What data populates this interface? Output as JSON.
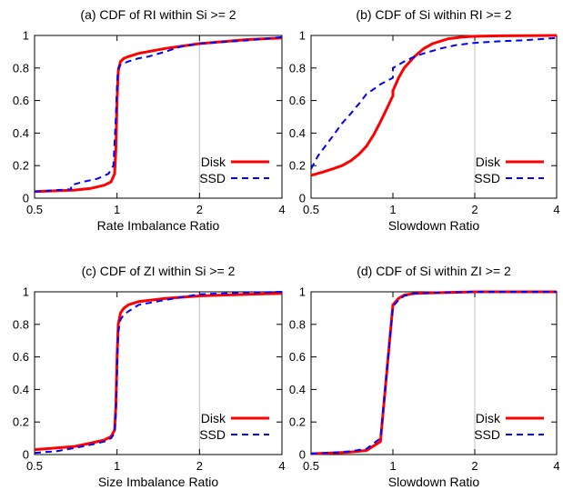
{
  "chart_data": [
    {
      "type": "line",
      "title": "(a) CDF of RI within Si >= 2",
      "xlabel": "Rate Imbalance Ratio",
      "ylabel": "",
      "xscale": "log2",
      "xlim": [
        0.5,
        4
      ],
      "ylim": [
        0,
        1
      ],
      "xticks": [
        "0.5",
        "1",
        "2",
        "4"
      ],
      "yticks": [
        "0",
        "0.2",
        "0.4",
        "0.6",
        "0.8",
        "1"
      ],
      "grid": "vertical line at x=2",
      "legend_position": "bottom-right",
      "series": [
        {
          "name": "Disk",
          "color": "#ff0000",
          "style": "solid",
          "x": [
            0.5,
            0.6,
            0.7,
            0.8,
            0.9,
            0.95,
            0.98,
            0.99,
            1.0,
            1.01,
            1.03,
            1.06,
            1.1,
            1.2,
            1.5,
            2.0,
            3.0,
            4.0
          ],
          "y": [
            0.04,
            0.045,
            0.05,
            0.06,
            0.08,
            0.1,
            0.15,
            0.3,
            0.6,
            0.78,
            0.84,
            0.86,
            0.87,
            0.89,
            0.92,
            0.95,
            0.975,
            0.985
          ]
        },
        {
          "name": "SSD",
          "color": "#0000ff",
          "style": "dashed",
          "x": [
            0.5,
            0.6,
            0.68,
            0.68,
            0.75,
            0.85,
            0.93,
            0.97,
            0.99,
            1.0,
            1.01,
            1.03,
            1.1,
            1.2,
            1.3,
            1.5,
            1.7,
            2.0,
            3.0,
            4.0
          ],
          "y": [
            0.04,
            0.05,
            0.055,
            0.08,
            0.1,
            0.12,
            0.15,
            0.2,
            0.5,
            0.7,
            0.8,
            0.82,
            0.84,
            0.86,
            0.87,
            0.9,
            0.93,
            0.95,
            0.97,
            0.99
          ]
        }
      ]
    },
    {
      "type": "line",
      "title": "(b) CDF of Si within RI >= 2",
      "xlabel": "Slowdown Ratio",
      "ylabel": "",
      "xscale": "log2",
      "xlim": [
        0.5,
        4
      ],
      "ylim": [
        0,
        1
      ],
      "xticks": [
        "0.5",
        "1",
        "2",
        "4"
      ],
      "yticks": [
        "0",
        "0.2",
        "0.4",
        "0.6",
        "0.8",
        "1"
      ],
      "grid": "vertical line at x=2",
      "legend_position": "bottom-right",
      "series": [
        {
          "name": "Disk",
          "color": "#ff0000",
          "style": "solid",
          "x": [
            0.5,
            0.55,
            0.6,
            0.65,
            0.7,
            0.75,
            0.8,
            0.85,
            0.9,
            0.95,
            1.0,
            1.0,
            1.05,
            1.1,
            1.2,
            1.3,
            1.4,
            1.6,
            1.8,
            2.0,
            2.5,
            3.0,
            4.0
          ],
          "y": [
            0.14,
            0.16,
            0.18,
            0.2,
            0.23,
            0.27,
            0.32,
            0.39,
            0.47,
            0.55,
            0.63,
            0.66,
            0.74,
            0.8,
            0.87,
            0.92,
            0.95,
            0.98,
            0.99,
            0.995,
            0.998,
            0.999,
            1.0
          ]
        },
        {
          "name": "SSD",
          "color": "#0000ff",
          "style": "dashed",
          "x": [
            0.5,
            0.53,
            0.57,
            0.6,
            0.65,
            0.7,
            0.75,
            0.8,
            0.85,
            0.9,
            0.95,
            1.0,
            1.0,
            1.05,
            1.1,
            1.2,
            1.3,
            1.5,
            1.7,
            2.0,
            2.5,
            3.0,
            4.0
          ],
          "y": [
            0.18,
            0.26,
            0.33,
            0.38,
            0.46,
            0.52,
            0.58,
            0.64,
            0.67,
            0.7,
            0.72,
            0.74,
            0.8,
            0.82,
            0.84,
            0.87,
            0.89,
            0.92,
            0.94,
            0.955,
            0.965,
            0.97,
            0.985
          ]
        }
      ]
    },
    {
      "type": "line",
      "title": "(c) CDF of ZI within Si >= 2",
      "xlabel": "Size Imbalance Ratio",
      "ylabel": "",
      "xscale": "log2",
      "xlim": [
        0.5,
        4
      ],
      "ylim": [
        0,
        1
      ],
      "xticks": [
        "0.5",
        "1",
        "2",
        "4"
      ],
      "yticks": [
        "0",
        "0.2",
        "0.4",
        "0.6",
        "0.8",
        "1"
      ],
      "grid": "vertical line at x=2",
      "legend_position": "bottom-right",
      "series": [
        {
          "name": "Disk",
          "color": "#ff0000",
          "style": "solid",
          "x": [
            0.5,
            0.6,
            0.7,
            0.8,
            0.9,
            0.95,
            0.98,
            0.99,
            1.0,
            1.01,
            1.03,
            1.06,
            1.1,
            1.2,
            1.5,
            2.0,
            3.0,
            4.0
          ],
          "y": [
            0.03,
            0.04,
            0.05,
            0.07,
            0.09,
            0.11,
            0.15,
            0.3,
            0.6,
            0.8,
            0.87,
            0.9,
            0.92,
            0.94,
            0.96,
            0.975,
            0.985,
            0.99
          ]
        },
        {
          "name": "SSD",
          "color": "#0000ff",
          "style": "dashed",
          "x": [
            0.5,
            0.6,
            0.7,
            0.8,
            0.9,
            0.95,
            0.98,
            0.99,
            1.0,
            1.01,
            1.03,
            1.06,
            1.1,
            1.2,
            1.5,
            2.0,
            3.0,
            4.0
          ],
          "y": [
            0.01,
            0.02,
            0.04,
            0.06,
            0.08,
            0.1,
            0.13,
            0.25,
            0.5,
            0.75,
            0.83,
            0.86,
            0.88,
            0.92,
            0.95,
            0.985,
            0.995,
            1.0
          ]
        }
      ]
    },
    {
      "type": "line",
      "title": "(d) CDF of Si within ZI >= 2",
      "xlabel": "Slowdown Ratio",
      "ylabel": "",
      "xscale": "log2",
      "xlim": [
        0.5,
        4
      ],
      "ylim": [
        0,
        1
      ],
      "xticks": [
        "0.5",
        "1",
        "2",
        "4"
      ],
      "yticks": [
        "0",
        "0.2",
        "0.4",
        "0.6",
        "0.8",
        "1"
      ],
      "grid": "vertical line at x=2",
      "legend_position": "bottom-right",
      "series": [
        {
          "name": "Disk",
          "color": "#ff0000",
          "style": "solid",
          "x": [
            0.5,
            0.6,
            0.7,
            0.8,
            0.9,
            1.0,
            1.05,
            1.1,
            1.2,
            1.5,
            2.0,
            3.0,
            4.0
          ],
          "y": [
            0.005,
            0.01,
            0.015,
            0.025,
            0.08,
            0.92,
            0.96,
            0.98,
            0.99,
            0.995,
            1.0,
            1.0,
            1.0
          ]
        },
        {
          "name": "SSD",
          "color": "#0000ff",
          "style": "dashed",
          "x": [
            0.5,
            0.6,
            0.7,
            0.8,
            0.9,
            1.0,
            1.05,
            1.1,
            1.2,
            1.5,
            2.0,
            3.0,
            4.0
          ],
          "y": [
            0.005,
            0.012,
            0.02,
            0.035,
            0.1,
            0.91,
            0.95,
            0.975,
            0.99,
            0.995,
            1.0,
            1.0,
            1.0
          ]
        }
      ]
    }
  ]
}
